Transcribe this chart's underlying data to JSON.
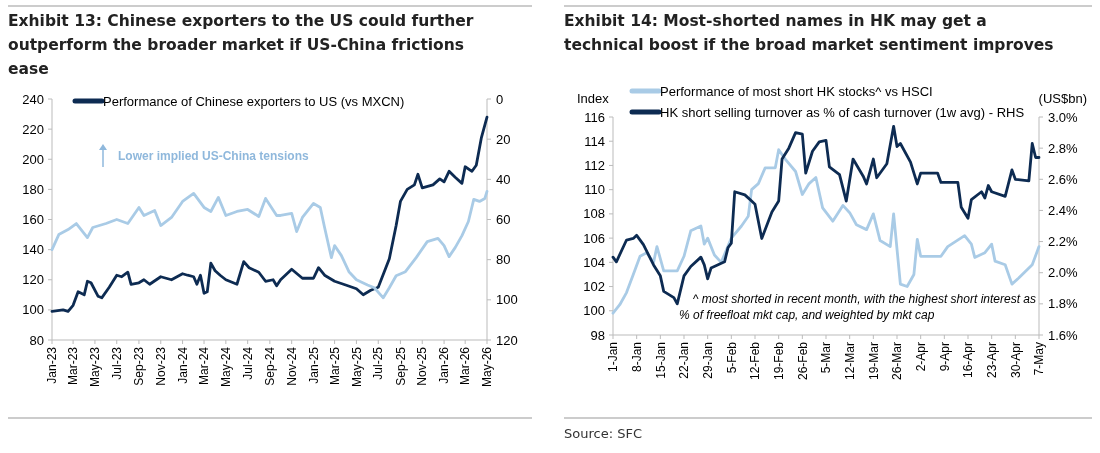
{
  "chart_data": [
    {
      "type": "line",
      "title": "Exhibit 13: Chinese exporters to the US could further outperform the broader market if US-China frictions ease",
      "annotations": [
        "Lower implied US-China tensions"
      ],
      "legend": "top left",
      "grid": false,
      "ylim": [
        80,
        240
      ],
      "yticks": [
        80,
        100,
        120,
        140,
        160,
        180,
        200,
        220,
        240
      ],
      "y2lim": [
        120,
        0
      ],
      "y2ticks": [
        0,
        20,
        40,
        60,
        80,
        100,
        120
      ],
      "xlim": [
        "2023-01",
        "2026-05"
      ],
      "xticks": [
        {
          "value": "2023-01",
          "label": "Jan-23"
        },
        {
          "value": "2023-03",
          "label": "Mar-23"
        },
        {
          "value": "2023-05",
          "label": "May-23"
        },
        {
          "value": "2023-07",
          "label": "Jul-23"
        },
        {
          "value": "2023-09",
          "label": "Sep-23"
        },
        {
          "value": "2023-11",
          "label": "Nov-23"
        },
        {
          "value": "2024-01",
          "label": "Jan-24"
        },
        {
          "value": "2024-03",
          "label": "Mar-24"
        },
        {
          "value": "2024-05",
          "label": "May-24"
        },
        {
          "value": "2024-07",
          "label": "Jul-24"
        },
        {
          "value": "2024-09",
          "label": "Sep-24"
        },
        {
          "value": "2024-11",
          "label": "Nov-24"
        },
        {
          "value": "2025-01",
          "label": "Jan-25"
        },
        {
          "value": "2025-03",
          "label": "Mar-25"
        },
        {
          "value": "2025-05",
          "label": "May-25"
        },
        {
          "value": "2025-07",
          "label": "Jul-25"
        },
        {
          "value": "2025-09",
          "label": "Sep-25"
        },
        {
          "value": "2025-11",
          "label": "Nov-25"
        },
        {
          "value": "2026-01",
          "label": "Jan-26"
        },
        {
          "value": "2026-03",
          "label": "Mar-26"
        },
        {
          "value": "2026-05",
          "label": "May-26"
        }
      ],
      "series": [
        {
          "name": "Performance of Chinese exporters to US (vs MXCN)",
          "color": "#0d2b52",
          "x": [
            "2023-01-01",
            "2023-02-01",
            "2023-02-15",
            "2023-03-01",
            "2023-03-15",
            "2023-04-01",
            "2023-04-10",
            "2023-04-20",
            "2023-05-10",
            "2023-05-20",
            "2023-06-10",
            "2023-07-01",
            "2023-07-15",
            "2023-08-01",
            "2023-08-10",
            "2023-09-01",
            "2023-09-15",
            "2023-10-01",
            "2023-11-01",
            "2023-12-01",
            "2024-01-01",
            "2024-01-15",
            "2024-02-01",
            "2024-02-10",
            "2024-02-20",
            "2024-03-01",
            "2024-03-10",
            "2024-03-20",
            "2024-04-01",
            "2024-04-15",
            "2024-05-01",
            "2024-06-01",
            "2024-06-20",
            "2024-07-05",
            "2024-08-01",
            "2024-08-20",
            "2024-09-10",
            "2024-09-20",
            "2024-10-01",
            "2024-11-01",
            "2024-12-01",
            "2025-01-01",
            "2025-01-15",
            "2025-02-01",
            "2025-03-01",
            "2025-04-01",
            "2025-05-01",
            "2025-05-20",
            "2025-06-10",
            "2025-07-01",
            "2025-08-01",
            "2025-08-20",
            "2025-09-01",
            "2025-09-20",
            "2025-10-10",
            "2025-10-20",
            "2025-11-01",
            "2025-12-01",
            "2025-12-20",
            "2026-01-01",
            "2026-01-15",
            "2026-02-01",
            "2026-02-20",
            "2026-03-01",
            "2026-03-20",
            "2026-04-01",
            "2026-04-15",
            "2026-05-01"
          ],
          "values": [
            99,
            100,
            99,
            103,
            112,
            110,
            119,
            118,
            109,
            108,
            115,
            123,
            122,
            125,
            117,
            118,
            120,
            117,
            122,
            120,
            124,
            123,
            122,
            117,
            123,
            111,
            112,
            131,
            126,
            123,
            120,
            117,
            132,
            128,
            125,
            119,
            120,
            116,
            120,
            127,
            121,
            121,
            128,
            123,
            119,
            116.5,
            114,
            110,
            113,
            115,
            134,
            156,
            172,
            180,
            183,
            190,
            181,
            183,
            187,
            185,
            192,
            188,
            184,
            195,
            192,
            196,
            214,
            228
          ]
        },
        {
          "color": "#a9cbe6",
          "axis": "y2",
          "x": [
            "2023-01-01",
            "2023-01-20",
            "2023-02-15",
            "2023-03-10",
            "2023-04-10",
            "2023-04-25",
            "2023-06-01",
            "2023-07-01",
            "2023-08-01",
            "2023-09-01",
            "2023-09-15",
            "2023-10-15",
            "2023-11-01",
            "2023-12-01",
            "2024-01-01",
            "2024-02-01",
            "2024-03-01",
            "2024-03-20",
            "2024-04-10",
            "2024-05-01",
            "2024-06-01",
            "2024-07-01",
            "2024-08-01",
            "2024-08-20",
            "2024-09-20",
            "2024-10-01",
            "2024-11-01",
            "2024-11-15",
            "2024-12-01",
            "2025-01-01",
            "2025-01-20",
            "2025-02-01",
            "2025-02-20",
            "2025-03-01",
            "2025-03-20",
            "2025-04-10",
            "2025-05-01",
            "2025-06-01",
            "2025-06-20",
            "2025-07-15",
            "2025-08-01",
            "2025-08-20",
            "2025-09-15",
            "2025-10-15",
            "2025-11-15",
            "2025-12-15",
            "2026-01-01",
            "2026-01-15",
            "2026-02-01",
            "2026-02-20",
            "2026-03-10",
            "2026-03-25",
            "2026-04-10",
            "2026-04-25",
            "2026-05-01"
          ],
          "values": [
            75,
            67.5,
            65,
            62,
            69,
            64,
            62,
            60,
            62,
            54,
            58,
            55.5,
            63,
            59,
            51,
            47,
            54,
            56,
            49,
            58,
            56,
            55,
            58.5,
            49.5,
            58,
            58,
            57,
            66,
            59,
            52,
            54,
            64,
            79,
            73,
            78,
            86,
            90,
            92.6,
            94,
            99,
            94,
            88,
            86,
            79,
            71,
            69.4,
            73,
            78.5,
            74,
            68,
            61,
            50,
            51,
            49.5,
            46
          ]
        }
      ]
    },
    {
      "type": "line",
      "title": "Exhibit 14: Most-shorted names in HK may get a technical boost if the broad market sentiment improves",
      "ylabel": "Index",
      "y2label": "(US$bn)",
      "annotations": [
        "^ most shorted in recent month, with the highest short interest as\n% of freefloat mkt cap, and weighted by mkt cap",
        "Source: SFC"
      ],
      "legend": "top",
      "grid": false,
      "ylim": [
        98,
        116
      ],
      "yticks": [
        98,
        100,
        102,
        104,
        106,
        108,
        110,
        112,
        114,
        116
      ],
      "y2lim": [
        1.6,
        3.0
      ],
      "y2ticks": [
        {
          "value": 1.6,
          "label": "1.6%"
        },
        {
          "value": 1.8,
          "label": "1.8%"
        },
        {
          "value": 2.0,
          "label": "2.0%"
        },
        {
          "value": 2.2,
          "label": "2.2%"
        },
        {
          "value": 2.4,
          "label": "2.4%"
        },
        {
          "value": 2.6,
          "label": "2.6%"
        },
        {
          "value": 2.8,
          "label": "2.8%"
        },
        {
          "value": 3.0,
          "label": "3.0%"
        }
      ],
      "xlim": [
        "--01-01",
        "--05-07"
      ],
      "xticks": [
        {
          "value": "--01-01",
          "label": "1-Jan"
        },
        {
          "value": "--01-08",
          "label": "8-Jan"
        },
        {
          "value": "--01-15",
          "label": "15-Jan"
        },
        {
          "value": "--01-22",
          "label": "22-Jan"
        },
        {
          "value": "--01-29",
          "label": "29-Jan"
        },
        {
          "value": "--02-05",
          "label": "5-Feb"
        },
        {
          "value": "--02-12",
          "label": "12-Feb"
        },
        {
          "value": "--02-19",
          "label": "19-Feb"
        },
        {
          "value": "--02-26",
          "label": "26-Feb"
        },
        {
          "value": "--03-05",
          "label": "5-Mar"
        },
        {
          "value": "--03-12",
          "label": "12-Mar"
        },
        {
          "value": "--03-19",
          "label": "19-Mar"
        },
        {
          "value": "--03-26",
          "label": "26-Mar"
        },
        {
          "value": "--04-02",
          "label": "2-Apr"
        },
        {
          "value": "--04-09",
          "label": "9-Apr"
        },
        {
          "value": "--04-16",
          "label": "16-Apr"
        },
        {
          "value": "--04-23",
          "label": "23-Apr"
        },
        {
          "value": "--04-30",
          "label": "30-Apr"
        },
        {
          "value": "--05-07",
          "label": "7-May"
        }
      ],
      "series": [
        {
          "name": "Performance of most short HK stocks^ vs HSCI",
          "color": "#a9cbe6",
          "x": [
            "--01-01",
            "--01-03",
            "--01-05",
            "--01-07",
            "--01-09",
            "--01-11",
            "--01-13",
            "--01-14",
            "--01-16",
            "--01-20",
            "--01-22",
            "--01-24",
            "--01-27",
            "--01-28",
            "--01-29",
            "--01-31",
            "--02-02",
            "--02-05",
            "--02-08",
            "--02-10",
            "--02-11",
            "--02-13",
            "--02-15",
            "--02-18",
            "--02-19",
            "--02-21",
            "--02-24",
            "--02-26",
            "--02-28",
            "--03-02",
            "--03-04",
            "--03-07",
            "--03-10",
            "--03-12",
            "--03-14",
            "--03-17",
            "--03-19",
            "--03-21",
            "--03-24",
            "--03-25",
            "--03-27",
            "--03-29",
            "--03-31",
            "--04-01",
            "--04-02",
            "--04-08",
            "--04-10",
            "--04-15",
            "--04-17",
            "--04-18",
            "--04-21",
            "--04-23",
            "--04-24",
            "--04-27",
            "--04-29",
            "--05-01",
            "--05-05",
            "--05-07"
          ],
          "values": [
            99.8,
            100.5,
            101.5,
            103,
            104.5,
            104.8,
            104,
            105.3,
            103.3,
            103.3,
            104.5,
            106.6,
            107,
            105.5,
            106,
            104.6,
            104,
            106,
            107,
            107.8,
            110,
            110.5,
            111.8,
            111.8,
            113.3,
            112.5,
            111.5,
            109.6,
            110.5,
            111,
            108.5,
            107.4,
            108.7,
            108.1,
            107.1,
            106.7,
            108,
            105.8,
            105.3,
            108,
            102.2,
            102,
            103,
            105.9,
            104.5,
            104.5,
            105.3,
            106.2,
            105.5,
            104.4,
            104.8,
            105.5,
            104.1,
            103.8,
            102.2,
            102.7,
            103.8,
            105.3
          ]
        },
        {
          "name": "HK short selling turnover as % of cash turnover (1w avg) - RHS",
          "color": "#0d2b52",
          "axis": "y2",
          "x": [
            "--01-01",
            "--01-02",
            "--01-05",
            "--01-07",
            "--01-08",
            "--01-10",
            "--01-13",
            "--01-15",
            "--01-16",
            "--01-19",
            "--01-20",
            "--01-22",
            "--01-24",
            "--01-27",
            "--01-28",
            "--01-29",
            "--01-30",
            "--02-03",
            "--02-04",
            "--02-05",
            "--02-06",
            "--02-09",
            "--02-11",
            "--02-12",
            "--02-14",
            "--02-17",
            "--02-19",
            "--02-20",
            "--02-22",
            "--02-24",
            "--02-26",
            "--02-27",
            "--03-01",
            "--03-03",
            "--03-05",
            "--03-06",
            "--03-09",
            "--03-11",
            "--03-13",
            "--03-16",
            "--03-17",
            "--03-19",
            "--03-20",
            "--03-23",
            "--03-25",
            "--03-26",
            "--03-27",
            "--03-30",
            "--04-01",
            "--04-02",
            "--04-07",
            "--04-08",
            "--04-13",
            "--04-14",
            "--04-16",
            "--04-17",
            "--04-20",
            "--04-21",
            "--04-22",
            "--04-23",
            "--04-27",
            "--04-29",
            "--04-30",
            "--05-04",
            "--05-05",
            "--05-06",
            "--05-07"
          ],
          "values": [
            2.1,
            2.07,
            2.21,
            2.22,
            2.24,
            2.18,
            2.05,
            1.98,
            1.88,
            1.84,
            1.8,
            1.98,
            2.04,
            2.1,
            2.05,
            1.96,
            2.03,
            2.07,
            2.16,
            2.19,
            2.52,
            2.5,
            2.46,
            2.44,
            2.22,
            2.39,
            2.46,
            2.73,
            2.8,
            2.9,
            2.89,
            2.64,
            2.78,
            2.84,
            2.85,
            2.68,
            2.63,
            2.46,
            2.73,
            2.62,
            2.57,
            2.73,
            2.61,
            2.7,
            2.94,
            2.81,
            2.83,
            2.71,
            2.57,
            2.64,
            2.64,
            2.58,
            2.58,
            2.42,
            2.35,
            2.47,
            2.52,
            2.48,
            2.56,
            2.52,
            2.49,
            2.66,
            2.6,
            2.59,
            2.83,
            2.74,
            2.74
          ]
        }
      ]
    }
  ]
}
